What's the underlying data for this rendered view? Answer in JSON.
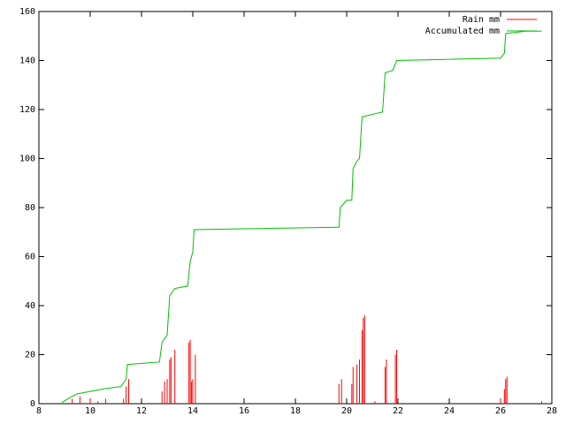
{
  "chart_data": {
    "type": "line",
    "series": [
      {
        "name": "Rain mm",
        "color": "#ff0000",
        "style": "impulses",
        "x": [
          9.3,
          9.6,
          10.0,
          10.3,
          10.6,
          11.3,
          11.4,
          11.5,
          12.8,
          12.9,
          13.0,
          13.1,
          13.15,
          13.3,
          13.85,
          13.9,
          13.95,
          14.0,
          14.1,
          19.7,
          19.8,
          20.2,
          20.25,
          20.4,
          20.5,
          20.6,
          20.65,
          20.7,
          21.1,
          21.5,
          21.55,
          21.9,
          21.95,
          26.0,
          26.15,
          26.2,
          26.25,
          27.6
        ],
        "values": [
          2,
          3,
          2,
          1,
          2,
          2,
          7,
          10,
          5,
          9,
          10,
          18,
          19,
          22,
          25,
          26,
          9,
          10,
          20,
          8,
          10,
          8,
          15,
          16,
          18,
          30,
          35,
          36,
          1,
          15,
          18,
          20,
          22,
          2,
          6,
          10,
          11,
          1
        ]
      },
      {
        "name": "Accumulated mm",
        "color": "#00c000",
        "style": "lines",
        "x": [
          8.9,
          9.3,
          9.5,
          10.0,
          10.5,
          11.2,
          11.4,
          11.45,
          12.7,
          12.8,
          13.0,
          13.1,
          13.3,
          13.8,
          13.9,
          14.0,
          14.05,
          19.7,
          19.75,
          20.0,
          20.2,
          20.25,
          20.4,
          20.5,
          20.6,
          21.4,
          21.5,
          21.8,
          21.95,
          26.0,
          26.15,
          26.2,
          27.0,
          27.6
        ],
        "values": [
          0.5,
          3,
          4,
          5,
          6,
          7,
          10,
          16,
          17,
          25,
          28,
          44,
          47,
          48,
          58,
          62,
          71,
          72,
          80,
          83,
          83,
          96,
          99,
          100,
          117,
          119,
          135,
          136,
          140,
          141,
          143,
          151,
          152,
          152
        ]
      }
    ],
    "xlim": [
      8,
      28
    ],
    "xticks": [
      8,
      10,
      12,
      14,
      16,
      18,
      20,
      22,
      24,
      26,
      28
    ],
    "ylim": [
      0,
      160
    ],
    "yticks": [
      0,
      20,
      40,
      60,
      80,
      100,
      120,
      140,
      160
    ],
    "legend": "top-right"
  }
}
